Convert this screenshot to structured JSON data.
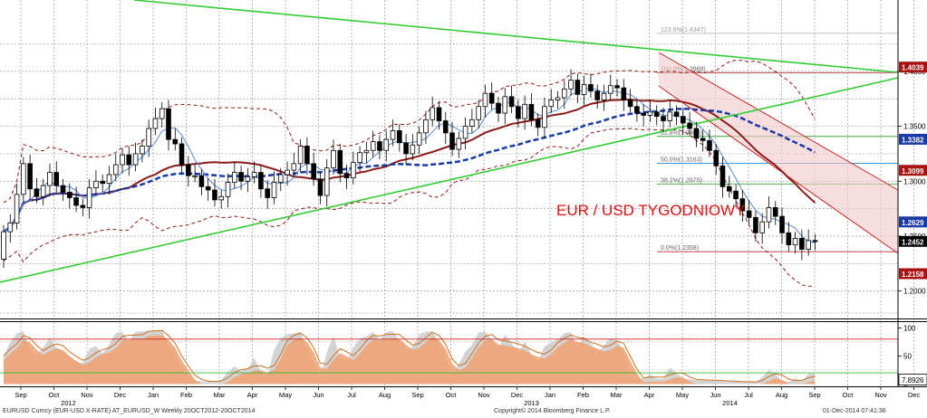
{
  "chart_data": {
    "type": "candlestick",
    "title": "EUR / USD TYGODNIOWY",
    "main_yticks": [
      "1.2000",
      "1.2500",
      "1.3000",
      "1.3500",
      "1.4000"
    ],
    "main_ylim": [
      1.175,
      1.465
    ],
    "osc_yticks": [
      "0",
      "50",
      "100"
    ],
    "osc_ylim": [
      -4,
      112
    ],
    "x_months": [
      "Sep",
      "Oct",
      "Nov",
      "Dec",
      "Jan",
      "Feb",
      "Mar",
      "Apr",
      "May",
      "Jun",
      "Jul",
      "Aug",
      "Sep",
      "Oct",
      "Nov",
      "Dec",
      "Jan",
      "Feb",
      "Mar",
      "Apr",
      "May",
      "Jun",
      "Jul",
      "Aug",
      "Sep",
      "Oct",
      "Nov",
      "Dec"
    ],
    "x_years": [
      "2012",
      "2013",
      "2014"
    ],
    "year_month_index": [
      1,
      15,
      21
    ],
    "price_labels": [
      {
        "text": "1.4039",
        "value": 1.4039,
        "color": "#aa1111"
      },
      {
        "text": "1.3382",
        "value": 1.3382,
        "color": "#1a3aa8"
      },
      {
        "text": "1.3099",
        "value": 1.3099,
        "color": "#aa1111"
      },
      {
        "text": "1.2629",
        "value": 1.2629,
        "color": "#1a3aa8"
      },
      {
        "text": "1.2452",
        "value": 1.2452,
        "color": "#000000"
      },
      {
        "text": "1.2158",
        "value": 1.2158,
        "color": "#aa1111"
      }
    ],
    "fibonacci": [
      {
        "label": "123.6%(1.4347)",
        "value": 1.4347
      },
      {
        "label": "100.0%(1.3988)",
        "value": 1.3988
      },
      {
        "label": "61.8%(1.3408)",
        "value": 1.3408
      },
      {
        "label": "50.0%(1.3163)",
        "value": 1.3163
      },
      {
        "label": "38.2%(1.2975)",
        "value": 1.2975
      },
      {
        "label": "0.0%(1.2358)",
        "value": 1.2358
      }
    ],
    "osc_label": "7.8926",
    "osc_levels": [
      80,
      20
    ],
    "weekly": [
      [
        1.229,
        1.254
      ],
      [
        1.254,
        1.262
      ],
      [
        1.262,
        1.288
      ],
      [
        1.288,
        1.316
      ],
      [
        1.316,
        1.293
      ],
      [
        1.293,
        1.286
      ],
      [
        1.286,
        1.296
      ],
      [
        1.296,
        1.308
      ],
      [
        1.308,
        1.296
      ],
      [
        1.296,
        1.29
      ],
      [
        1.29,
        1.285
      ],
      [
        1.285,
        1.278
      ],
      [
        1.278,
        1.276
      ],
      [
        1.276,
        1.294
      ],
      [
        1.294,
        1.3
      ],
      [
        1.3,
        1.298
      ],
      [
        1.298,
        1.306
      ],
      [
        1.306,
        1.315
      ],
      [
        1.315,
        1.324
      ],
      [
        1.324,
        1.315
      ],
      [
        1.315,
        1.325
      ],
      [
        1.325,
        1.332
      ],
      [
        1.332,
        1.348
      ],
      [
        1.348,
        1.357
      ],
      [
        1.357,
        1.366
      ],
      [
        1.366,
        1.338
      ],
      [
        1.338,
        1.334
      ],
      [
        1.334,
        1.315
      ],
      [
        1.315,
        1.305
      ],
      [
        1.305,
        1.305
      ],
      [
        1.305,
        1.295
      ],
      [
        1.295,
        1.292
      ],
      [
        1.292,
        1.283
      ],
      [
        1.283,
        1.286
      ],
      [
        1.286,
        1.299
      ],
      [
        1.299,
        1.308
      ],
      [
        1.308,
        1.3
      ],
      [
        1.3,
        1.304
      ],
      [
        1.304,
        1.308
      ],
      [
        1.308,
        1.293
      ],
      [
        1.293,
        1.285
      ],
      [
        1.285,
        1.299
      ],
      [
        1.299,
        1.306
      ],
      [
        1.306,
        1.31
      ],
      [
        1.31,
        1.316
      ],
      [
        1.316,
        1.332
      ],
      [
        1.332,
        1.316
      ],
      [
        1.316,
        1.302
      ],
      [
        1.302,
        1.287
      ],
      [
        1.287,
        1.312
      ],
      [
        1.312,
        1.328
      ],
      [
        1.328,
        1.307
      ],
      [
        1.307,
        1.303
      ],
      [
        1.303,
        1.317
      ],
      [
        1.317,
        1.326
      ],
      [
        1.326,
        1.328
      ],
      [
        1.328,
        1.336
      ],
      [
        1.336,
        1.328
      ],
      [
        1.328,
        1.338
      ],
      [
        1.338,
        1.346
      ],
      [
        1.346,
        1.335
      ],
      [
        1.335,
        1.325
      ],
      [
        1.325,
        1.333
      ],
      [
        1.333,
        1.344
      ],
      [
        1.344,
        1.356
      ],
      [
        1.356,
        1.367
      ],
      [
        1.367,
        1.355
      ],
      [
        1.355,
        1.344
      ],
      [
        1.344,
        1.329
      ],
      [
        1.329,
        1.339
      ],
      [
        1.339,
        1.35
      ],
      [
        1.35,
        1.356
      ],
      [
        1.356,
        1.368
      ],
      [
        1.368,
        1.38
      ],
      [
        1.38,
        1.371
      ],
      [
        1.371,
        1.362
      ],
      [
        1.362,
        1.377
      ],
      [
        1.377,
        1.368
      ],
      [
        1.368,
        1.357
      ],
      [
        1.357,
        1.37
      ],
      [
        1.37,
        1.356
      ],
      [
        1.356,
        1.349
      ],
      [
        1.349,
        1.368
      ],
      [
        1.368,
        1.374
      ],
      [
        1.374,
        1.376
      ],
      [
        1.376,
        1.384
      ],
      [
        1.384,
        1.392
      ],
      [
        1.392,
        1.379
      ],
      [
        1.379,
        1.388
      ],
      [
        1.388,
        1.382
      ],
      [
        1.382,
        1.374
      ],
      [
        1.374,
        1.38
      ],
      [
        1.38,
        1.387
      ],
      [
        1.387,
        1.385
      ],
      [
        1.385,
        1.374
      ],
      [
        1.374,
        1.368
      ],
      [
        1.368,
        1.362
      ],
      [
        1.362,
        1.36
      ],
      [
        1.36,
        1.363
      ],
      [
        1.363,
        1.359
      ],
      [
        1.359,
        1.355
      ],
      [
        1.355,
        1.363
      ],
      [
        1.363,
        1.359
      ],
      [
        1.359,
        1.353
      ],
      [
        1.353,
        1.348
      ],
      [
        1.348,
        1.339
      ],
      [
        1.339,
        1.337
      ],
      [
        1.337,
        1.328
      ],
      [
        1.328,
        1.314
      ],
      [
        1.314,
        1.295
      ],
      [
        1.295,
        1.291
      ],
      [
        1.291,
        1.284
      ],
      [
        1.284,
        1.273
      ],
      [
        1.273,
        1.267
      ],
      [
        1.267,
        1.253
      ],
      [
        1.253,
        1.263
      ],
      [
        1.263,
        1.276
      ],
      [
        1.276,
        1.268
      ],
      [
        1.268,
        1.253
      ],
      [
        1.253,
        1.242
      ],
      [
        1.242,
        1.248
      ],
      [
        1.248,
        1.238
      ],
      [
        1.238,
        1.246
      ],
      [
        1.246,
        1.2452
      ]
    ]
  },
  "footer": {
    "left": "EURUSD Curncy (EUR-USD X-RATE) AT_EURUSD_W  Weekly 20OCT2012-20OCT2014",
    "center": "Copyright© 2014 Bloomberg Finance L.P.",
    "right": "01-Dec-2014 07:41:36"
  }
}
